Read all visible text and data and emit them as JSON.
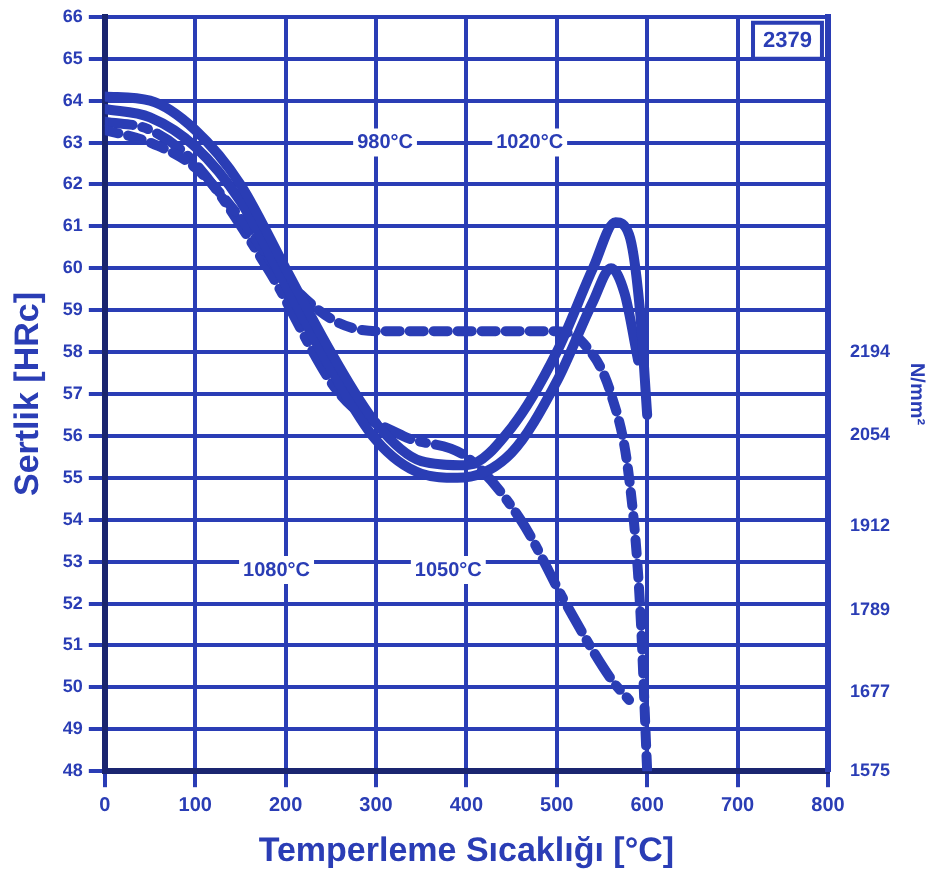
{
  "chart_data": {
    "type": "line",
    "xlabel": "Temperleme Sıcaklığı [°C]",
    "ylabel": "Sertlik [HRc]",
    "y2label": "N/mm²",
    "xlim": [
      0,
      800
    ],
    "xticks": [
      0,
      100,
      200,
      300,
      400,
      500,
      600,
      700,
      800
    ],
    "ylim": [
      48,
      66
    ],
    "yticks": [
      48,
      49,
      50,
      51,
      52,
      53,
      54,
      55,
      56,
      57,
      58,
      59,
      60,
      61,
      62,
      63,
      64,
      65,
      66
    ],
    "y2lim": [
      1575,
      2858
    ],
    "y2ticks": [
      1575,
      1677,
      1789,
      1912,
      2054,
      2194
    ],
    "log": "y2",
    "grid": true,
    "legend": false,
    "marker": "none",
    "annotations": [
      "2379",
      {
        "text": "980°C",
        "x": 310,
        "y": 63
      },
      {
        "text": "1020°C",
        "x": 470,
        "y": 63
      },
      {
        "text": "1080°C",
        "x": 190,
        "y": 52.8
      },
      {
        "text": "1050°C",
        "x": 380,
        "y": 52.8
      }
    ],
    "series": [
      {
        "color": "#2a3db5",
        "line_style": "solid",
        "x": [
          0,
          50,
          100,
          150,
          200,
          250,
          300,
          350,
          400,
          450,
          500,
          540,
          565,
          580,
          592,
          600
        ],
        "values": [
          64.1,
          64,
          63.3,
          62,
          60,
          58,
          56.3,
          55.4,
          55.3,
          56.2,
          58,
          60,
          61.1,
          60.8,
          59,
          56.5
        ]
      },
      {
        "color": "#2a3db5",
        "line_style": "solid",
        "x": [
          0,
          50,
          100,
          150,
          200,
          250,
          300,
          350,
          390,
          450,
          500,
          540,
          560,
          575,
          590
        ],
        "values": [
          63.8,
          63.6,
          62.9,
          61.6,
          59.6,
          57.6,
          55.9,
          55.1,
          55,
          55.6,
          57.3,
          59.2,
          60,
          59.4,
          57.8
        ]
      },
      {
        "color": "#2a3db5",
        "line_style": "dotted",
        "x": [
          0,
          50,
          100,
          150,
          190,
          250,
          300,
          400,
          500,
          530,
          560,
          580,
          592,
          600
        ],
        "values": [
          63.3,
          63,
          62.4,
          61.2,
          60,
          58.8,
          58.5,
          58.5,
          58.5,
          58.2,
          57,
          55,
          52,
          48
        ]
      },
      {
        "color": "#2a3db5",
        "line_style": "dashed",
        "x": [
          0,
          50,
          100,
          180,
          260,
          330,
          400,
          460,
          510,
          560,
          580
        ],
        "values": [
          63.5,
          63.3,
          62.5,
          60,
          57,
          56,
          55.5,
          54,
          52,
          50.2,
          49.7
        ]
      }
    ]
  }
}
